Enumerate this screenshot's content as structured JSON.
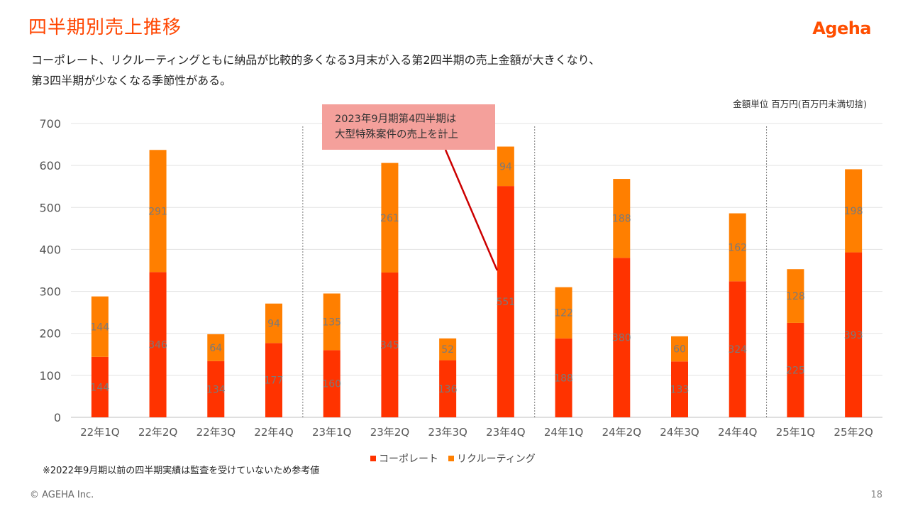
{
  "slide": {
    "title": "四半期別売上推移",
    "logo": "Ageha",
    "lead_line1": "コーポレート、リクルーティングともに納品が比較的多くなる3月末が入る第2四半期の売上金額が大きくなり、",
    "lead_line2": "第3四半期が少なくなる季節性がある。",
    "unit_note": "金額単位 百万円(百万円未満切捨)",
    "callout_line1": "2023年9月期第4四半期は",
    "callout_line2": "大型特殊案件の売上を計上",
    "footnote": "※2022年9月期以前の四半期実績は監査を受けていないため参考値",
    "copyright": "© AGEHA Inc.",
    "page_number": "18"
  },
  "chart_data": {
    "type": "bar",
    "stacked": true,
    "categories": [
      "22年1Q",
      "22年2Q",
      "22年3Q",
      "22年4Q",
      "23年1Q",
      "23年2Q",
      "23年3Q",
      "23年4Q",
      "24年1Q",
      "24年2Q",
      "24年3Q",
      "24年4Q",
      "25年1Q",
      "25年2Q"
    ],
    "series": [
      {
        "name": "コーポレート",
        "color": "#FF3300",
        "values": [
          144,
          346,
          134,
          177,
          160,
          345,
          136,
          551,
          188,
          380,
          133,
          324,
          225,
          393
        ]
      },
      {
        "name": "リクルーティング",
        "color": "#FF7F00",
        "values": [
          144,
          291,
          64,
          94,
          135,
          261,
          52,
          94,
          122,
          188,
          60,
          162,
          128,
          198
        ]
      }
    ],
    "ylim": [
      0,
      700
    ],
    "yticks": [
      0,
      100,
      200,
      300,
      400,
      500,
      600,
      700
    ],
    "grid": true,
    "fiscal_year_dividers_after": [
      "22年4Q",
      "23年4Q",
      "24年4Q"
    ],
    "legend_position": "bottom"
  }
}
